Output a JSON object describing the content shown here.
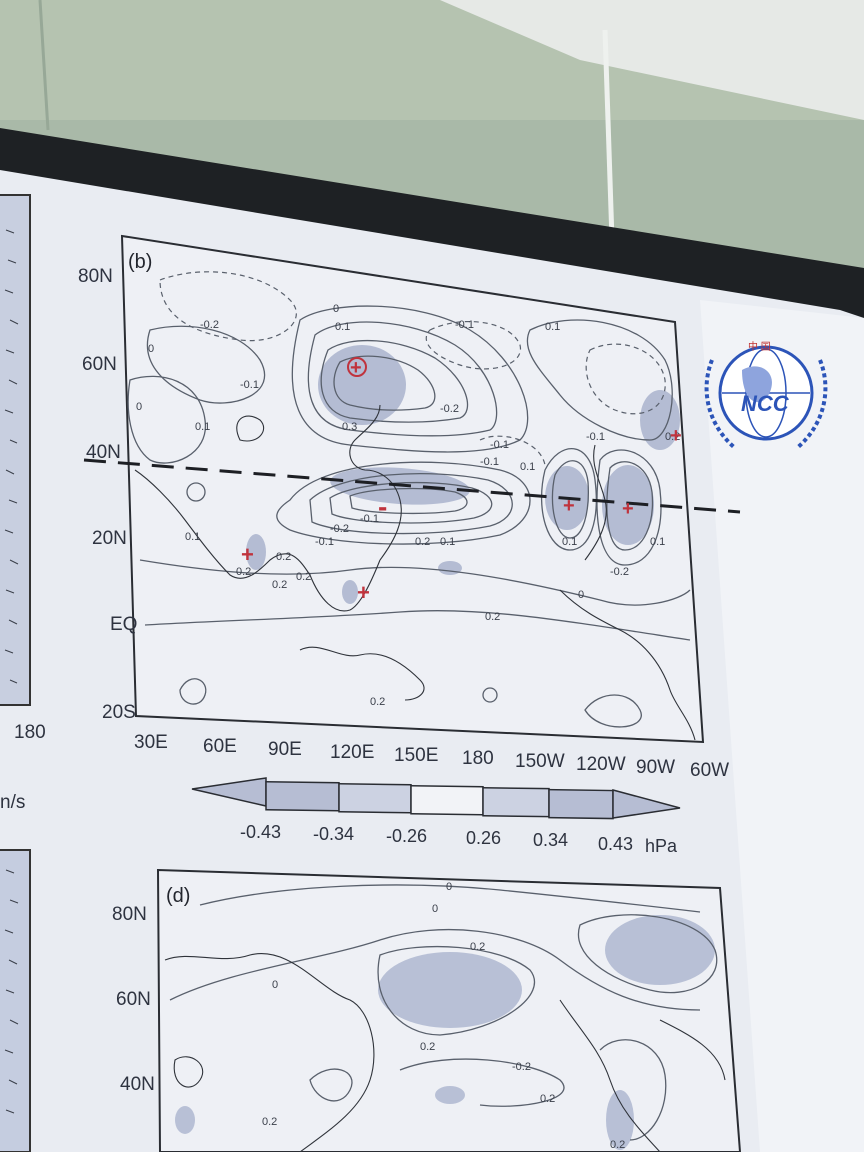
{
  "colors": {
    "wall": "#a7b8a6",
    "screen_frame": "#1c1f22",
    "screen": "#e8ebf1",
    "shade": "#aeb6cf",
    "contour": "#555c68",
    "marker": "#c0333d",
    "logo_blue": "#2c54b8"
  },
  "left_panel": {
    "tick_label": "180",
    "unit_label": "n/s"
  },
  "map_b": {
    "panel_label": "(b)",
    "lat_ticks": [
      "80N",
      "60N",
      "40N",
      "20N",
      "EQ",
      "20S"
    ],
    "lon_ticks": [
      "30E",
      "60E",
      "90E",
      "120E",
      "150E",
      "180",
      "150W",
      "120W",
      "90W",
      "60W"
    ],
    "contour_labels": [
      "0",
      "0.1",
      "0",
      "-0.2",
      "-0.1",
      "0",
      "0.3",
      "-0.2",
      "-0.1",
      "0.1",
      "-0.1",
      "-0.1",
      "-0.1",
      "0.2",
      "0.2",
      "0.1",
      "-0.1",
      "-0.2",
      "-0.1",
      "0.1",
      "-0.2",
      "0.1",
      "0.2",
      "0.2",
      "0.2",
      "0.1",
      "0.2",
      "0.1",
      "0.1",
      "0.2",
      "0.2",
      "0"
    ],
    "markers": [
      "+",
      "+",
      "+",
      "+",
      "+",
      "+",
      "-"
    ]
  },
  "colorbar": {
    "values": [
      "-0.43",
      "-0.34",
      "-0.26",
      "0.26",
      "0.34",
      "0.43"
    ],
    "unit": "hPa"
  },
  "logo": {
    "text": "NCC",
    "chinese": "中 国"
  },
  "map_d": {
    "panel_label": "(d)",
    "lat_ticks": [
      "80N",
      "60N",
      "40N"
    ],
    "contour_labels": [
      "0",
      "0",
      "0",
      "0.2",
      "0.2",
      "-0.2",
      "0.2",
      "0.2",
      "0.2"
    ]
  }
}
